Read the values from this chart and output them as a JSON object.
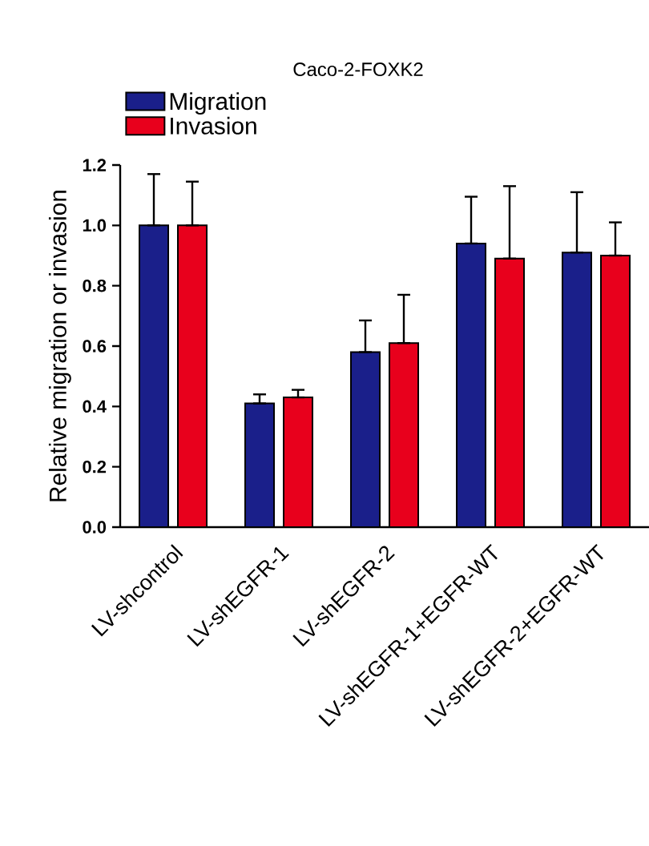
{
  "chart_data": {
    "type": "bar",
    "title": "Caco-2-FOXK2",
    "ylabel": "Relative migration or invasion",
    "categories": [
      "LV-shcontrol",
      "LV-shEGFR-1",
      "LV-shEGFR-2",
      "LV-shEGFR-1+EGFR-WT",
      "LV-shEGFR-2+EGFR-WT"
    ],
    "series": [
      {
        "name": "Migration",
        "color": "#1a1f8a",
        "values": [
          1.0,
          0.41,
          0.58,
          0.94,
          0.91
        ],
        "errors": [
          [
            1.0,
            1.17
          ],
          [
            0.41,
            0.44
          ],
          [
            0.58,
            0.685
          ],
          [
            0.94,
            1.095
          ],
          [
            0.91,
            1.11
          ]
        ]
      },
      {
        "name": "Invasion",
        "color": "#e8001c",
        "values": [
          1.0,
          0.43,
          0.61,
          0.89,
          0.9
        ],
        "errors": [
          [
            1.0,
            1.145
          ],
          [
            0.43,
            0.455
          ],
          [
            0.61,
            0.77
          ],
          [
            0.89,
            1.13
          ],
          [
            0.9,
            1.01
          ]
        ]
      }
    ],
    "ylim": [
      0,
      1.2
    ],
    "yticks": [
      {
        "value": 0,
        "label": "0.0"
      },
      {
        "value": 0.2,
        "label": "0.2"
      },
      {
        "value": 0.4,
        "label": "0.4"
      },
      {
        "value": 0.6,
        "label": "0.6"
      },
      {
        "value": 0.8,
        "label": "0.8"
      },
      {
        "value": 1.0,
        "label": "1.0"
      },
      {
        "value": 1.2,
        "label": "1.2"
      }
    ],
    "grid": false,
    "legend": "top left"
  }
}
